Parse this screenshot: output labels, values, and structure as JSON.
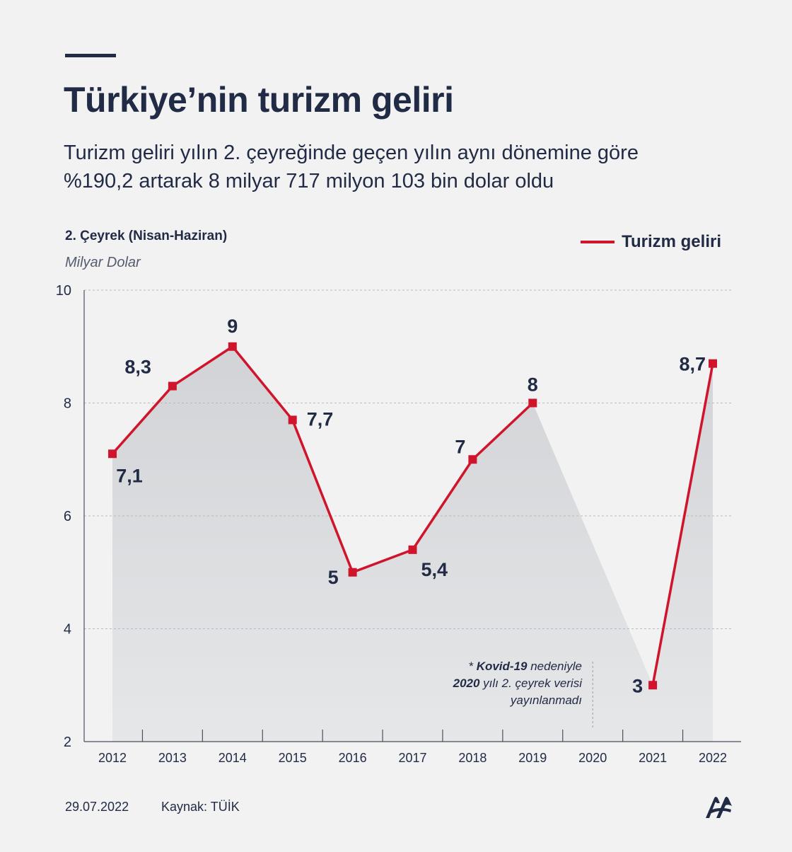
{
  "header": {
    "title": "Türkiye’nin turizm geliri",
    "subtitle_line1": "Turizm geliri yılın 2. çeyreğinde geçen yılın aynı dönemine göre",
    "subtitle_line2": "%190,2 artarak 8 milyar 717 milyon 103 bin dolar oldu",
    "period": "2. Çeyrek (Nisan-Haziran)",
    "unit": "Milyar Dolar"
  },
  "legend": {
    "label": "Turizm geliri",
    "color": "#d0142c"
  },
  "note": {
    "prefix": "* ",
    "bold1": "Kovid-19",
    "text1": " nedeniyle",
    "bold2": "2020",
    "text2": " yılı 2. çeyrek verisi",
    "text3": "yayınlanmadı"
  },
  "footer": {
    "date": "29.07.2022",
    "source": "Kaynak: TÜİK"
  },
  "colors": {
    "line": "#d0142c",
    "text": "#222b45",
    "area": "#d2d3d6",
    "background": "#f2f2f3"
  },
  "chart_data": {
    "type": "line",
    "categories": [
      "2012",
      "2013",
      "2014",
      "2015",
      "2016",
      "2017",
      "2018",
      "2019",
      "2020",
      "2021",
      "2022"
    ],
    "series": [
      {
        "name": "Turizm geliri",
        "values": [
          7.1,
          8.3,
          9.0,
          7.7,
          5.0,
          5.4,
          7.0,
          8.0,
          null,
          3.0,
          8.7
        ]
      }
    ],
    "data_labels": [
      "7,1",
      "8,3",
      "9",
      "7,7",
      "5",
      "5,4",
      "7",
      "8",
      "",
      "3",
      "8,7"
    ],
    "ylim": [
      2,
      10
    ],
    "yticks": [
      2,
      4,
      6,
      8,
      10
    ],
    "ytick_labels": [
      "2",
      "4",
      "6",
      "8",
      "10"
    ],
    "xlabel": "",
    "ylabel": "Milyar Dolar",
    "grid": "horizontal dashed",
    "legend_position": "top-right"
  }
}
